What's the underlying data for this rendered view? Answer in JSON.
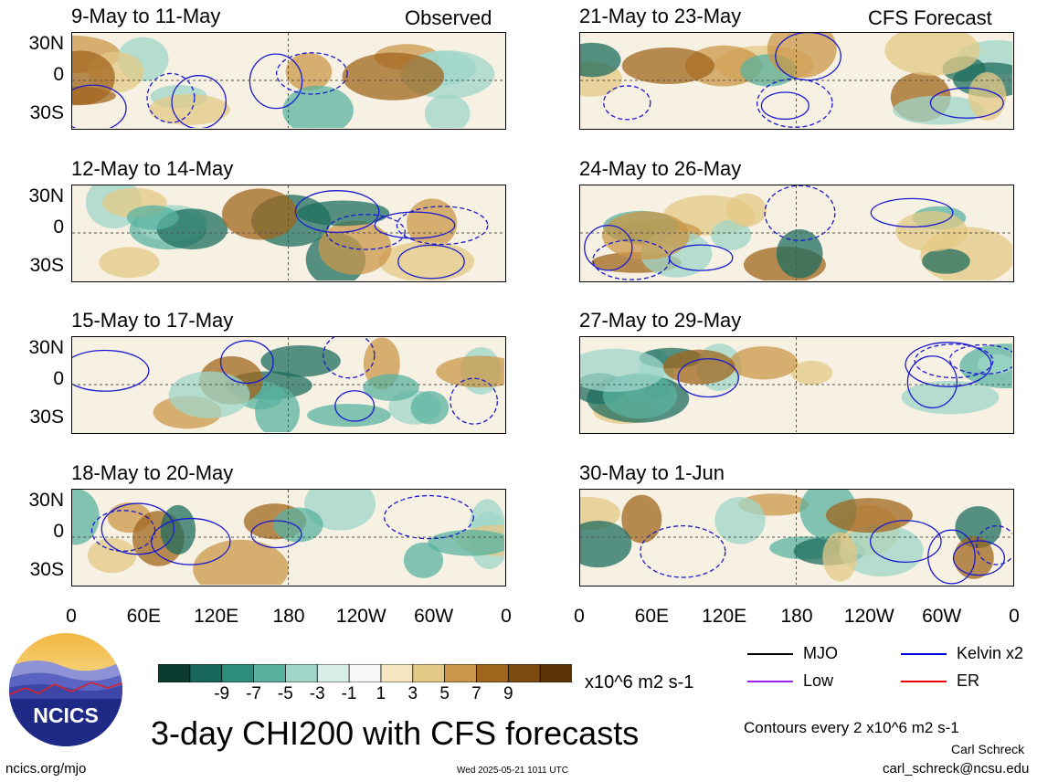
{
  "left_header_tag": "Observed",
  "right_header_tag": "CFS Forecast",
  "panels_left": [
    {
      "title": "9-May to 11-May"
    },
    {
      "title": "12-May to 14-May"
    },
    {
      "title": "15-May to 17-May"
    },
    {
      "title": "18-May to 20-May"
    }
  ],
  "panels_right": [
    {
      "title": "21-May to 23-May"
    },
    {
      "title": "24-May to 26-May"
    },
    {
      "title": "27-May to 29-May"
    },
    {
      "title": "30-May to 1-Jun"
    }
  ],
  "lat_labels": [
    "30N",
    "0",
    "30S"
  ],
  "lon_labels": [
    "0",
    "60E",
    "120E",
    "180",
    "120W",
    "60W",
    "0"
  ],
  "colorbar": {
    "colors": [
      "#0c3b30",
      "#16665a",
      "#2e8c7b",
      "#5ab1a0",
      "#9fd6c8",
      "#d7efe8",
      "#f7f7f7",
      "#f6e6c4",
      "#e4c885",
      "#c9974a",
      "#a0661d",
      "#7d4a12",
      "#5a3408"
    ],
    "labels": [
      "-9",
      "-7",
      "-5",
      "-3",
      "-1",
      "1",
      "3",
      "5",
      "7",
      "9"
    ],
    "units": "x10^6 m2 s-1"
  },
  "legend": [
    {
      "label": "MJO",
      "color": "#000000"
    },
    {
      "label": "Kelvin x2",
      "color": "#0000dd"
    },
    {
      "label": "Low",
      "color": "#a020f0"
    },
    {
      "label": "ER",
      "color": "#ee0000"
    }
  ],
  "main_title": "3-day CHI200 with CFS forecasts",
  "contour_note": "Contours every 2 x10^6 m2 s-1",
  "author": "Carl Schreck",
  "email": "carl_schreck@ncsu.edu",
  "url": "ncics.org/mjo",
  "timestamp": "Wed 2025-05-21 1011 UTC",
  "logo_text": "NCICS"
}
